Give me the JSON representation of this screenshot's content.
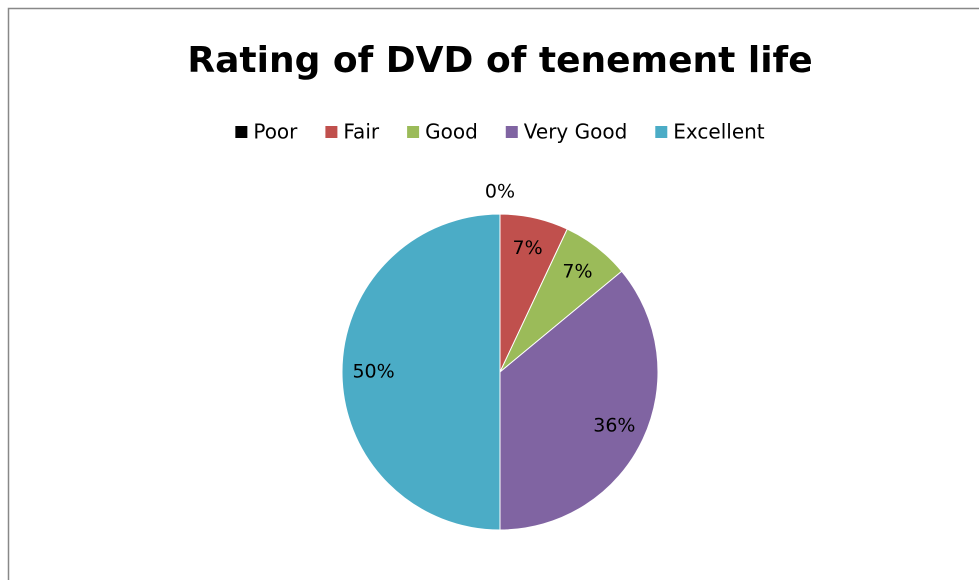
{
  "chart_data": {
    "type": "pie",
    "title": "Rating of DVD of tenement life",
    "categories": [
      "Poor",
      "Fair",
      "Good",
      "Very Good",
      "Excellent"
    ],
    "values": [
      0,
      7,
      7,
      36,
      50
    ],
    "value_labels": [
      "0%",
      "7%",
      "7%",
      "36%",
      "50%"
    ],
    "colors": [
      "#000000",
      "#c0504d",
      "#9bbb59",
      "#8064a2",
      "#4bacc6"
    ],
    "legend": "top"
  }
}
